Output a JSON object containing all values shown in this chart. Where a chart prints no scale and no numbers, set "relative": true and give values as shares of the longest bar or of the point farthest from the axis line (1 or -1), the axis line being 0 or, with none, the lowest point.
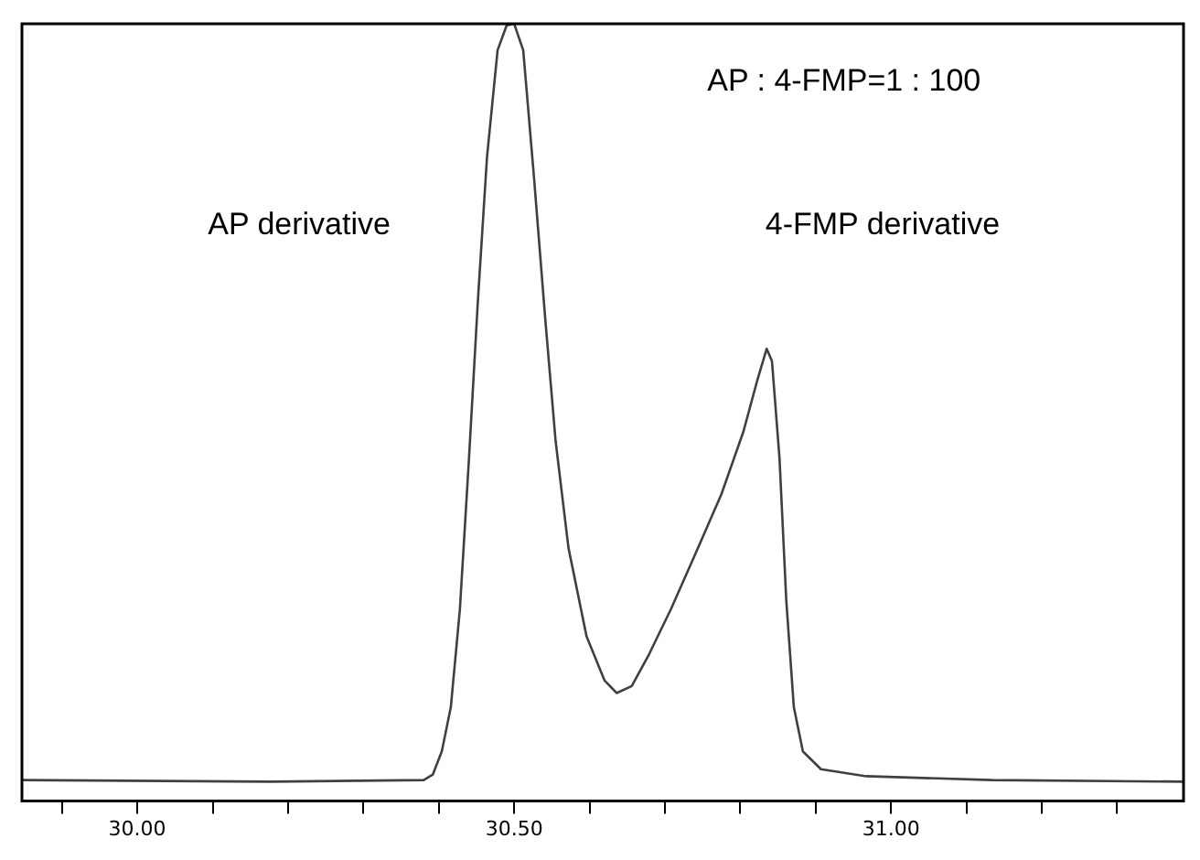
{
  "chart_data": {
    "type": "line",
    "relative": true,
    "color": "#404040",
    "marker": "none",
    "line_style": "solid",
    "grid": false,
    "legend": false,
    "x": [
      29.847,
      30.177,
      30.38,
      30.392,
      30.404,
      30.416,
      30.428,
      30.44,
      30.452,
      30.464,
      30.478,
      30.49,
      30.5,
      30.512,
      30.526,
      30.541,
      30.555,
      30.572,
      30.596,
      30.62,
      30.636,
      30.656,
      30.679,
      30.708,
      30.739,
      30.775,
      30.804,
      30.823,
      30.835,
      30.842,
      30.852,
      30.861,
      30.871,
      30.883,
      30.907,
      30.967,
      31.134,
      31.388
    ],
    "values": [
      0.027,
      0.025,
      0.027,
      0.034,
      0.064,
      0.121,
      0.247,
      0.44,
      0.646,
      0.829,
      0.966,
      0.998,
      1.0,
      0.966,
      0.806,
      0.623,
      0.463,
      0.326,
      0.212,
      0.155,
      0.139,
      0.148,
      0.189,
      0.247,
      0.315,
      0.395,
      0.475,
      0.543,
      0.582,
      0.566,
      0.441,
      0.258,
      0.121,
      0.064,
      0.041,
      0.032,
      0.027,
      0.025
    ],
    "xlim": [
      29.847,
      31.388
    ],
    "xticks": [
      {
        "value": 29.9,
        "label": null
      },
      {
        "value": 30,
        "label": "30.00"
      },
      {
        "value": 30.1,
        "label": null
      },
      {
        "value": 30.2,
        "label": null
      },
      {
        "value": 30.3,
        "label": null
      },
      {
        "value": 30.4,
        "label": null
      },
      {
        "value": 30.5,
        "label": "30.50"
      },
      {
        "value": 30.6,
        "label": null
      },
      {
        "value": 30.7,
        "label": null
      },
      {
        "value": 30.8,
        "label": null
      },
      {
        "value": 30.9,
        "label": null
      },
      {
        "value": 31,
        "label": "31.00"
      },
      {
        "value": 31.1,
        "label": null
      },
      {
        "value": 31.2,
        "label": null
      },
      {
        "value": 31.3,
        "label": null
      }
    ],
    "annotations": [
      "AP : 4-FMP=1 : 100",
      "AP derivative",
      "4-FMP derivative"
    ]
  }
}
